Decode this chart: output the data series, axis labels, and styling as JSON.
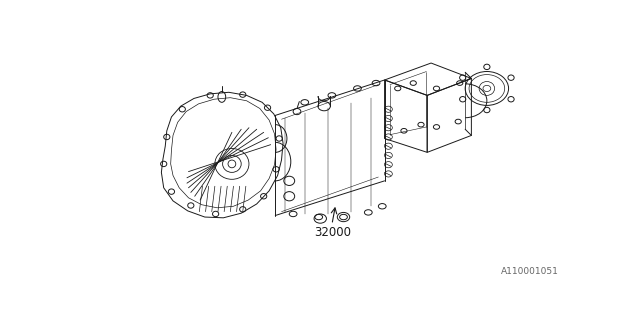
{
  "background_color": "#ffffff",
  "line_color": "#1a1a1a",
  "part_number": "32000",
  "diagram_id": "A110001051",
  "line_width": 0.7,
  "fig_width": 6.4,
  "fig_height": 3.2,
  "dpi": 100
}
